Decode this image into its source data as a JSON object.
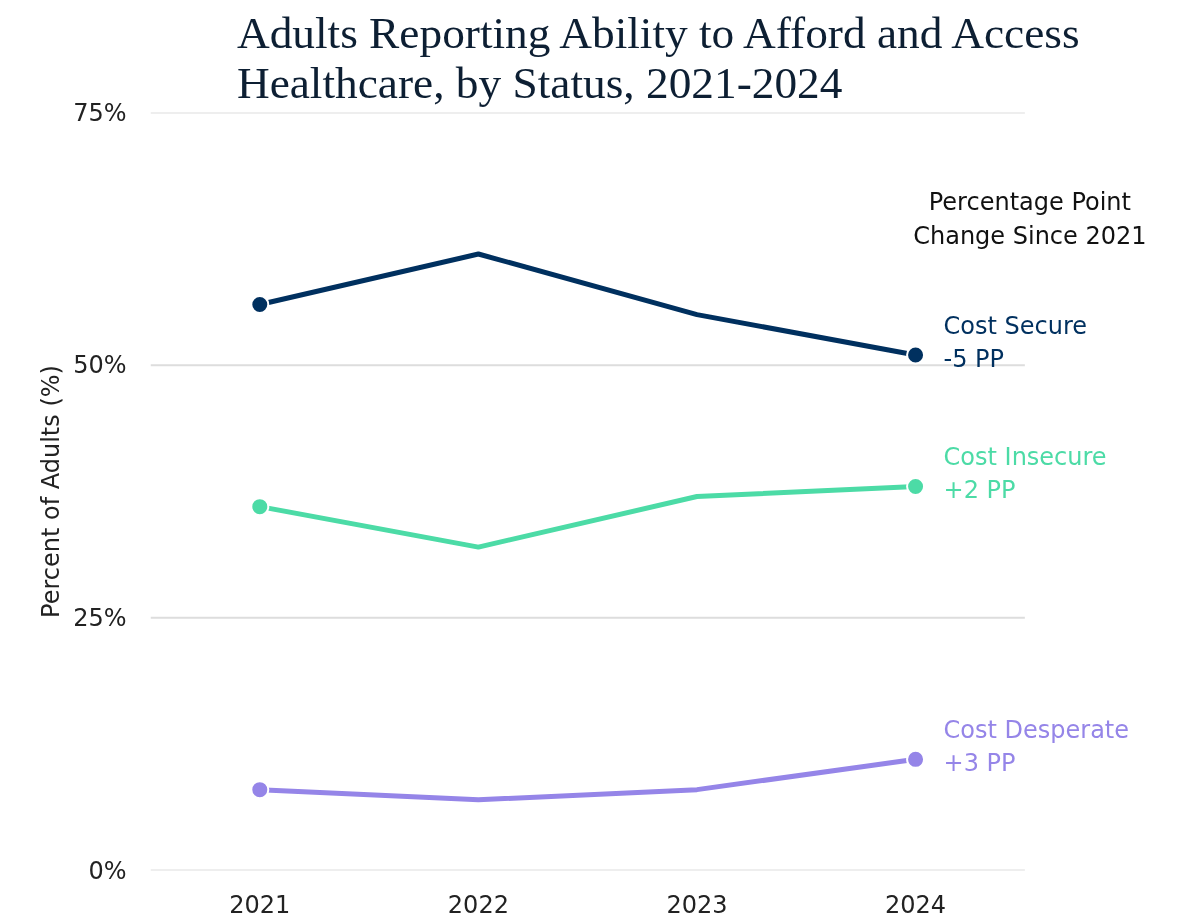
{
  "chart_data": {
    "type": "line",
    "title": "Adults Reporting Ability to Afford and Access\nHealthcare, by Status, 2021-2024",
    "ylabel": "Percent of Adults (%)",
    "legend_title": "Percentage Point\nChange Since 2021",
    "x": [
      2021,
      2022,
      2023,
      2024
    ],
    "series": [
      {
        "name": "Cost Secure",
        "color": "#00305f",
        "values": [
          56,
          61,
          55,
          51
        ]
      },
      {
        "name": "Cost Insecure",
        "color": "#4cdba6",
        "values": [
          36,
          32,
          37,
          38
        ]
      },
      {
        "name": "Cost Desperate",
        "color": "#9585e8",
        "values": [
          8,
          7,
          8,
          11
        ]
      }
    ],
    "annotations": [
      "-5 PP",
      "+2 PP",
      "+3 PP"
    ],
    "xlim": [
      2020.5,
      2024.5
    ],
    "xticks": [
      2021,
      2022,
      2023,
      2024
    ],
    "ylim": [
      0,
      75
    ],
    "yticks": [
      {
        "value": 0,
        "label": "0%"
      },
      {
        "value": 25,
        "label": "25%"
      },
      {
        "value": 50,
        "label": "50%"
      },
      {
        "value": 75,
        "label": "75%"
      }
    ],
    "grid": "y",
    "legend": false,
    "marker": "circle",
    "line_style": "solid"
  }
}
